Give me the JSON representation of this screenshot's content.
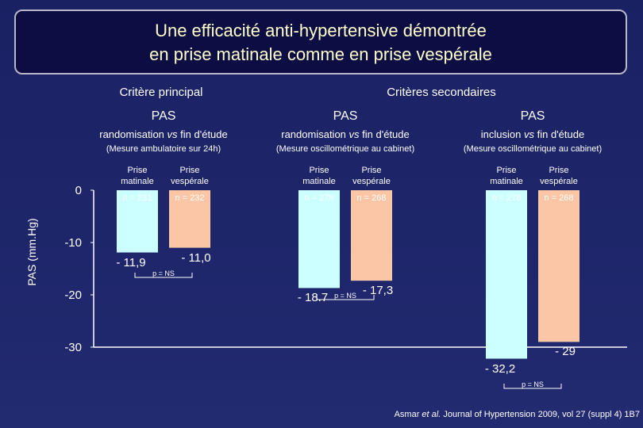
{
  "chart_data": {
    "type": "bar",
    "title": [
      "Une efficacité anti-hypertensive démontrée",
      "en prise matinale comme en prise vespérale"
    ],
    "y_label": "PAS (mm.Hg)",
    "headers": [
      "Critère principal",
      "Critères secondaires"
    ],
    "groups": [
      {
        "title": "PAS",
        "subtitle": [
          "randomisation",
          "vs",
          "fin d'étude"
        ],
        "method": "(Mesure ambulatoire sur 24h)",
        "p_label": "p = NS"
      },
      {
        "title": "PAS",
        "subtitle": [
          "randomisation",
          "vs",
          "fin d'étude"
        ],
        "method": "(Mesure oscillométrique au cabinet)",
        "p_label": "p = NS"
      },
      {
        "title": "PAS",
        "subtitle": [
          "inclusion",
          "vs",
          "fin d'étude"
        ],
        "method": "(Mesure oscillométrique au cabinet)",
        "p_label": "p = NS"
      }
    ],
    "series": [
      {
        "name": "Prise matinale",
        "color": "#ccffff",
        "values": [
          -11.9,
          -18.7,
          -32.2
        ],
        "value_labels": [
          "- 11,9",
          "- 18.7",
          "- 32,2"
        ],
        "n_labels": [
          "n = 231",
          "n = 278",
          "n = 278"
        ]
      },
      {
        "name": "Prise vespérale",
        "color": "#fbc6a6",
        "values": [
          -11.0,
          -17.3,
          -29
        ],
        "value_labels": [
          "- 11,0",
          "- 17,3",
          "- 29"
        ],
        "n_labels": [
          "n = 232",
          "n = 268",
          "n = 268"
        ]
      }
    ],
    "ylim": [
      -30,
      0
    ],
    "yticks": [
      0,
      -10,
      -20,
      -30
    ],
    "citation": [
      "Asmar",
      "et al.",
      "Journal of Hypertension 2009, vol 27 (suppl 4) 1B7"
    ]
  }
}
